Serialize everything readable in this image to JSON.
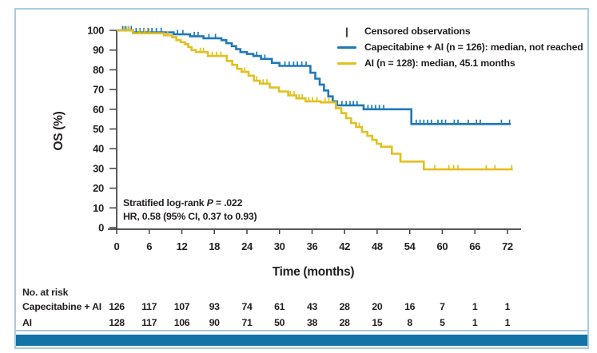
{
  "figure": {
    "border_color": "#a7cbdd",
    "bottom_bar_color": "#1173a6",
    "background": "#ffffff",
    "axis_color": "#414042",
    "text_color": "#231f20"
  },
  "chart_data": {
    "type": "line",
    "subtype": "kaplan-meier-step",
    "title": "",
    "xlabel": "Time (months)",
    "ylabel": "OS (%)",
    "xlim": [
      0,
      74
    ],
    "ylim": [
      0,
      100
    ],
    "xticks": [
      0,
      6,
      12,
      18,
      24,
      30,
      36,
      42,
      48,
      54,
      60,
      66,
      72
    ],
    "yticks": [
      0,
      10,
      20,
      30,
      40,
      50,
      60,
      70,
      80,
      90,
      100
    ],
    "grid": false,
    "legend": {
      "position": "top-right",
      "censored_symbol": "|",
      "censored_label": "Censored observations"
    },
    "series": [
      {
        "name": "Capecitabine + AI",
        "label": "Capecitabine + AI (n = 126): median, not reached",
        "n": 126,
        "median": "not reached",
        "color": "#1e79b8",
        "steps": [
          [
            0,
            100
          ],
          [
            3,
            99
          ],
          [
            10.5,
            98
          ],
          [
            13.5,
            97
          ],
          [
            16,
            96
          ],
          [
            19.3,
            95
          ],
          [
            20.2,
            93.5
          ],
          [
            21.2,
            92
          ],
          [
            22,
            90.5
          ],
          [
            22.8,
            89
          ],
          [
            24,
            88
          ],
          [
            25.2,
            87
          ],
          [
            26.6,
            85.5
          ],
          [
            28.6,
            83.5
          ],
          [
            30,
            82
          ],
          [
            35.7,
            78.5
          ],
          [
            36.6,
            75.5
          ],
          [
            37.4,
            72.5
          ],
          [
            38.2,
            69.5
          ],
          [
            39,
            66.5
          ],
          [
            39.8,
            64
          ],
          [
            40.6,
            62
          ],
          [
            45.5,
            60
          ],
          [
            54.3,
            52.5
          ],
          [
            72.6,
            52.5
          ]
        ],
        "censors": [
          [
            1.1,
            100
          ],
          [
            1.7,
            100
          ],
          [
            2.2,
            100
          ],
          [
            2.7,
            100
          ],
          [
            3.6,
            99
          ],
          [
            4.3,
            99
          ],
          [
            5,
            99
          ],
          [
            5.8,
            99
          ],
          [
            6.5,
            99
          ],
          [
            7.3,
            99
          ],
          [
            8.2,
            99
          ],
          [
            11.2,
            98
          ],
          [
            12.2,
            98
          ],
          [
            14.3,
            97
          ],
          [
            15,
            97
          ],
          [
            17,
            96
          ],
          [
            18.2,
            96
          ],
          [
            25.8,
            87
          ],
          [
            27.3,
            85.5
          ],
          [
            31,
            82
          ],
          [
            31.8,
            82
          ],
          [
            32.6,
            82
          ],
          [
            33.3,
            82
          ],
          [
            34.1,
            82
          ],
          [
            34.9,
            82
          ],
          [
            41.5,
            62
          ],
          [
            42.3,
            62
          ],
          [
            43,
            62
          ],
          [
            43.6,
            62
          ],
          [
            44.3,
            62
          ],
          [
            46.3,
            60
          ],
          [
            47,
            60
          ],
          [
            47.7,
            60
          ],
          [
            48.4,
            60
          ],
          [
            49.2,
            60
          ],
          [
            55.2,
            52.5
          ],
          [
            55.9,
            52.5
          ],
          [
            56.6,
            52.5
          ],
          [
            57.3,
            52.5
          ],
          [
            58,
            52.5
          ],
          [
            59.2,
            52.5
          ],
          [
            59.9,
            52.5
          ],
          [
            60.6,
            52.5
          ],
          [
            62.2,
            52.5
          ],
          [
            62.9,
            52.5
          ],
          [
            64.8,
            52.5
          ],
          [
            66.3,
            52.5
          ],
          [
            67,
            52.5
          ],
          [
            70.9,
            52.5
          ],
          [
            72.4,
            52.5
          ]
        ]
      },
      {
        "name": "AI",
        "label": "AI (n = 128): median, 45.1 months",
        "n": 128,
        "median": "45.1 months",
        "color": "#e2c01f",
        "steps": [
          [
            0,
            100
          ],
          [
            3,
            98.5
          ],
          [
            8.7,
            97.5
          ],
          [
            10.2,
            96.5
          ],
          [
            11,
            95
          ],
          [
            11.8,
            94
          ],
          [
            12.6,
            93
          ],
          [
            13.2,
            91.5
          ],
          [
            13.8,
            90
          ],
          [
            14.6,
            89
          ],
          [
            16.8,
            87
          ],
          [
            20.3,
            84.5
          ],
          [
            21.3,
            82.5
          ],
          [
            22.2,
            80.5
          ],
          [
            23,
            79
          ],
          [
            24.3,
            77
          ],
          [
            25.3,
            74.5
          ],
          [
            26.4,
            73
          ],
          [
            28.2,
            71
          ],
          [
            29.9,
            69
          ],
          [
            31.6,
            67
          ],
          [
            33.1,
            65.5
          ],
          [
            34.8,
            64
          ],
          [
            37.6,
            63.5
          ],
          [
            40.4,
            60.5
          ],
          [
            41.4,
            58
          ],
          [
            42.3,
            55.5
          ],
          [
            43.2,
            53
          ],
          [
            44.1,
            51
          ],
          [
            45.2,
            48.5
          ],
          [
            46.2,
            46.5
          ],
          [
            47.1,
            44.5
          ],
          [
            47.9,
            42.5
          ],
          [
            48.7,
            41
          ],
          [
            50.7,
            37.5
          ],
          [
            52.3,
            33.5
          ],
          [
            56.6,
            29.5
          ],
          [
            73,
            29.5
          ]
        ],
        "censors": [
          [
            1.4,
            100
          ],
          [
            2.1,
            100
          ],
          [
            4.2,
            98.5
          ],
          [
            5.1,
            98.5
          ],
          [
            6,
            98.5
          ],
          [
            9.4,
            97.5
          ],
          [
            15.4,
            89
          ],
          [
            16,
            89
          ],
          [
            17.6,
            87
          ],
          [
            18.4,
            87
          ],
          [
            19.2,
            87
          ],
          [
            23.6,
            79
          ],
          [
            25.8,
            74.5
          ],
          [
            27,
            73
          ],
          [
            27.7,
            73
          ],
          [
            32,
            67
          ],
          [
            32.7,
            67
          ],
          [
            33.6,
            65.5
          ],
          [
            34.2,
            65.5
          ],
          [
            35.4,
            64
          ],
          [
            36.1,
            64
          ],
          [
            36.9,
            64
          ],
          [
            38.4,
            63.5
          ],
          [
            39.1,
            63.5
          ],
          [
            44.7,
            51
          ],
          [
            58.6,
            29.5
          ],
          [
            61.2,
            29.5
          ],
          [
            62.1,
            29.5
          ],
          [
            62.9,
            29.5
          ],
          [
            68.1,
            29.5
          ],
          [
            69.7,
            29.5
          ],
          [
            72.8,
            29.5
          ]
        ]
      }
    ],
    "annotations": [
      {
        "text_prefix": "Stratified log-rank ",
        "italic": "P",
        "text_suffix": " = .022"
      },
      {
        "text": "HR, 0.58 (95% CI, 0.37 to 0.93)"
      }
    ],
    "risk_table": {
      "title": "No. at risk",
      "times": [
        0,
        6,
        12,
        18,
        24,
        30,
        36,
        42,
        48,
        54,
        60,
        66,
        72
      ],
      "rows": [
        {
          "label": "Capecitabine + AI",
          "values": [
            126,
            117,
            107,
            93,
            74,
            61,
            43,
            28,
            20,
            16,
            7,
            1,
            1
          ]
        },
        {
          "label": "AI",
          "values": [
            128,
            117,
            106,
            90,
            71,
            50,
            38,
            28,
            15,
            8,
            5,
            1,
            1
          ]
        }
      ]
    }
  }
}
